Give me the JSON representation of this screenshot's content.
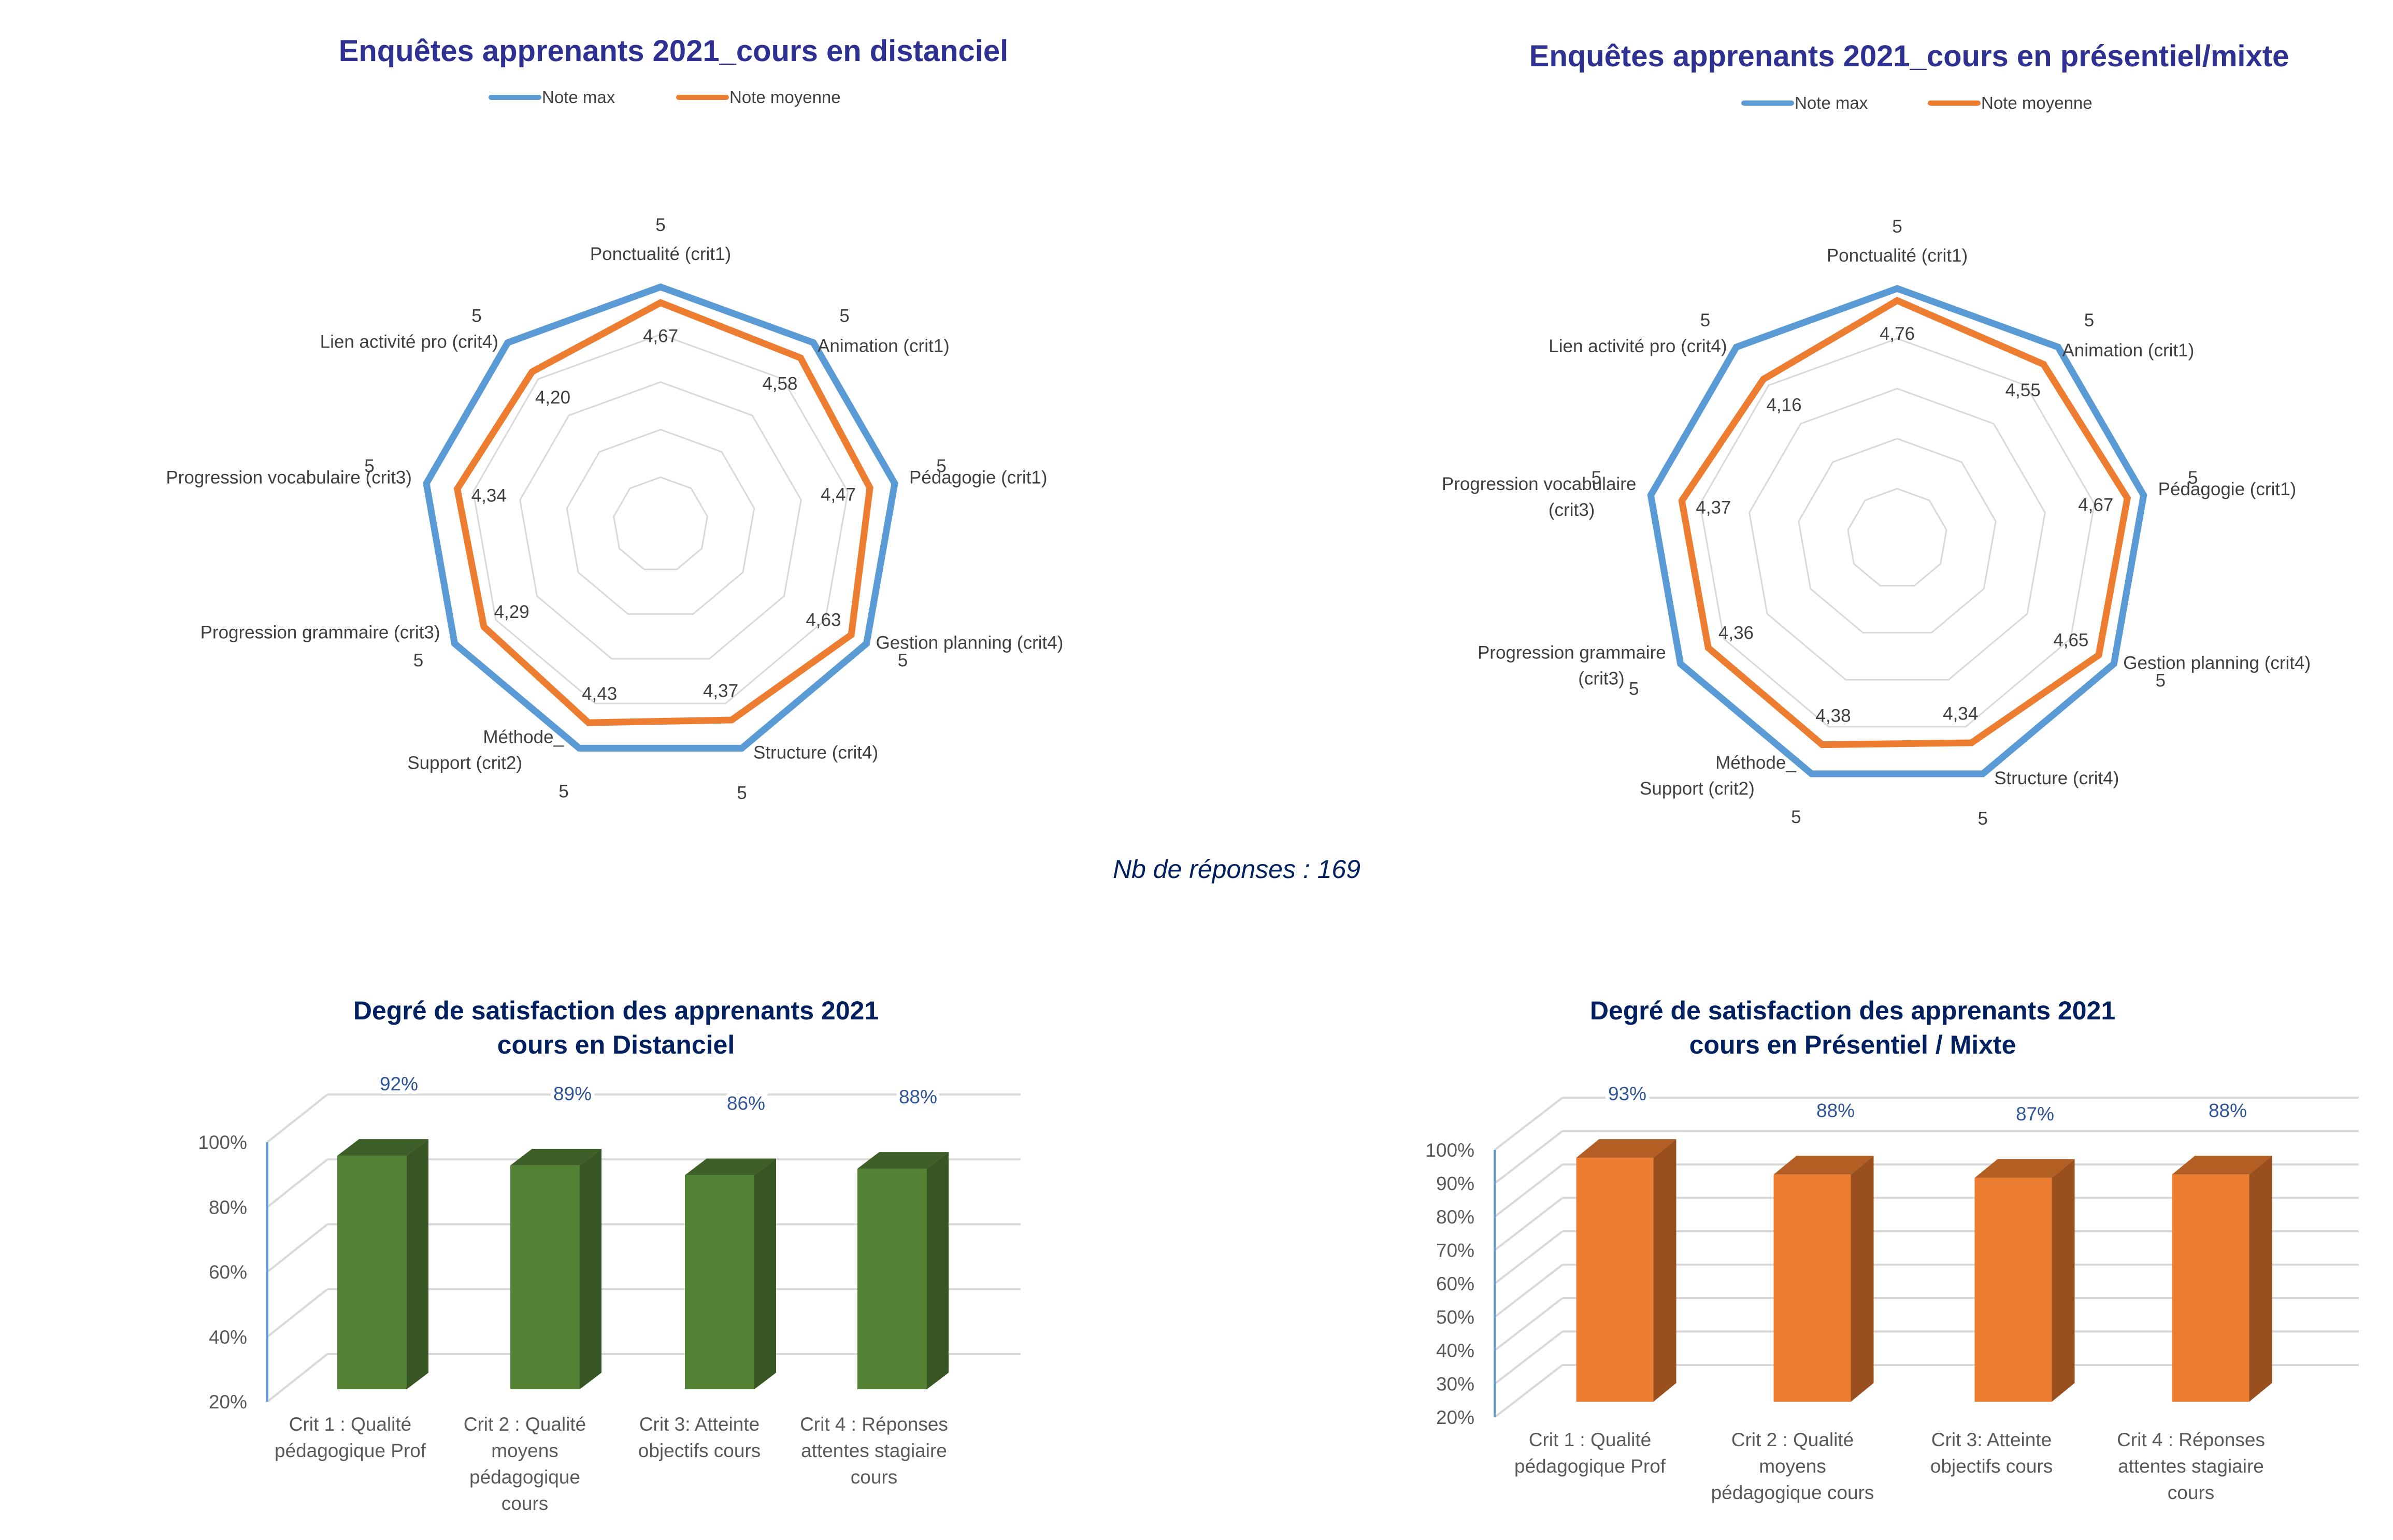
{
  "note": {
    "responses_label": "Nb de réponses : 169"
  },
  "colors": {
    "note_max": "#5b9bd5",
    "note_moyenne": "#ed7d31",
    "green_front": "#548235",
    "green_top": "#3f5f28",
    "green_side": "#375623",
    "orange_front": "#ed7d31",
    "orange_top": "#b35e23",
    "orange_side": "#9a4f1f",
    "axis_line": "#5b9bd5",
    "data_label": "#2f5597"
  },
  "chart_data": [
    {
      "id": "radar-distanciel",
      "type": "radar",
      "title": "Enquêtes apprenants 2021_cours en distanciel",
      "legend": [
        "Note max",
        "Note moyenne"
      ],
      "legend_position": "top",
      "range": [
        0,
        5
      ],
      "grid_steps": [
        1,
        2,
        3,
        4,
        5
      ],
      "categories": [
        "Ponctualité (crit1)",
        "Animation (crit1)",
        "Pédagogie (crit1)",
        "Gestion planning (crit4)",
        "Structure (crit4)",
        "Méthode_\nSupport (crit2)",
        "Progression grammaire (crit3)",
        "Progression vocabulaire (crit3)",
        "Lien activité pro (crit4)"
      ],
      "series": [
        {
          "name": "Note max",
          "values": [
            5,
            5,
            5,
            5,
            5,
            5,
            5,
            5,
            5
          ],
          "labels": [
            "5",
            "5",
            "5",
            "5",
            "5",
            "5",
            "5",
            "5",
            "5"
          ]
        },
        {
          "name": "Note moyenne",
          "values": [
            4.67,
            4.58,
            4.47,
            4.63,
            4.37,
            4.43,
            4.29,
            4.34,
            4.2
          ],
          "labels": [
            "4,67",
            "4,58",
            "4,47",
            "4,63",
            "4,37",
            "4,43",
            "4,29",
            "4,34",
            "4,20"
          ]
        }
      ]
    },
    {
      "id": "radar-presentiel",
      "type": "radar",
      "title": "Enquêtes apprenants 2021_cours en présentiel/mixte",
      "legend": [
        "Note max",
        "Note moyenne"
      ],
      "legend_position": "top",
      "range": [
        0,
        5
      ],
      "grid_steps": [
        1,
        2,
        3,
        4,
        5
      ],
      "categories": [
        "Ponctualité (crit1)",
        "Animation (crit1)",
        "Pédagogie (crit1)",
        "Gestion planning (crit4)",
        "Structure (crit4)",
        "Méthode_\nSupport (crit2)",
        "Progression grammaire\n(crit3)",
        "Progression vocabulaire\n(crit3)",
        "Lien activité pro (crit4)"
      ],
      "series": [
        {
          "name": "Note max",
          "values": [
            5,
            5,
            5,
            5,
            5,
            5,
            5,
            5,
            5
          ],
          "labels": [
            "5",
            "5",
            "5",
            "5",
            "5",
            "5",
            "5",
            "5",
            "5"
          ]
        },
        {
          "name": "Note moyenne",
          "values": [
            4.76,
            4.55,
            4.67,
            4.65,
            4.34,
            4.38,
            4.36,
            4.37,
            4.16
          ],
          "labels": [
            "4,76",
            "4,55",
            "4,67",
            "4,65",
            "4,34",
            "4,38",
            "4,36",
            "4,37",
            "4,16"
          ]
        }
      ]
    },
    {
      "id": "bar-distanciel",
      "type": "bar",
      "style": "3d-column",
      "title": [
        "Degré de satisfaction des apprenants 2021",
        "cours en Distanciel"
      ],
      "categories": [
        [
          "Crit 1 : Qualité",
          "pédagogique Prof"
        ],
        [
          "Crit 2 : Qualité",
          "moyens",
          "pédagogique",
          "cours"
        ],
        [
          "Crit 3: Atteinte",
          "objectifs cours"
        ],
        [
          "Crit 4 : Réponses",
          "attentes stagiaire",
          "cours"
        ]
      ],
      "values": [
        92,
        89,
        86,
        88
      ],
      "data_labels": [
        "92%",
        "89%",
        "86%",
        "88%"
      ],
      "ylim": [
        20,
        100
      ],
      "yticks": [
        "100%",
        "80%",
        "60%",
        "40%",
        "20%"
      ],
      "ytick_values": [
        100,
        80,
        60,
        40,
        20
      ],
      "grid": true,
      "xlabel": "",
      "ylabel": ""
    },
    {
      "id": "bar-presentiel",
      "type": "bar",
      "style": "3d-column",
      "title": [
        "Degré de satisfaction des apprenants 2021",
        "cours en Présentiel / Mixte"
      ],
      "categories": [
        [
          "Crit 1 : Qualité",
          "pédagogique Prof"
        ],
        [
          "Crit 2 : Qualité",
          "moyens",
          "pédagogique cours"
        ],
        [
          "Crit 3: Atteinte",
          "objectifs cours"
        ],
        [
          "Crit 4 : Réponses",
          "attentes stagiaire",
          "cours"
        ]
      ],
      "values": [
        93,
        88,
        87,
        88
      ],
      "data_labels": [
        "93%",
        "88%",
        "87%",
        "88%"
      ],
      "ylim": [
        20,
        100
      ],
      "yticks": [
        "100%",
        "90%",
        "80%",
        "70%",
        "60%",
        "50%",
        "40%",
        "30%",
        "20%"
      ],
      "ytick_values": [
        100,
        90,
        80,
        70,
        60,
        50,
        40,
        30,
        20
      ],
      "grid": true,
      "xlabel": "",
      "ylabel": ""
    }
  ]
}
